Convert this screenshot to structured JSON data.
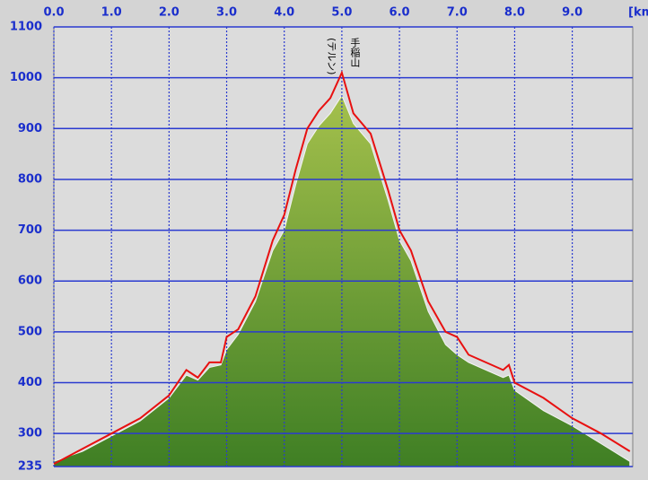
{
  "chart_data": {
    "type": "line",
    "x_label": "[km",
    "annotations": [
      "手稲山",
      "(テルン)"
    ],
    "annotation_x": 5.0,
    "x": [
      0,
      0.5,
      1,
      1.5,
      2,
      2.3,
      2.5,
      2.7,
      2.9,
      3,
      3.2,
      3.5,
      3.8,
      4,
      4.2,
      4.4,
      4.6,
      4.8,
      5,
      5.2,
      5.5,
      5.8,
      6,
      6.2,
      6.5,
      6.8,
      7,
      7.2,
      7.5,
      7.8,
      7.9,
      8,
      8.5,
      9,
      9.5,
      10
    ],
    "series": [
      {
        "color": "#6a9a34",
        "fill": true,
        "values": [
          245,
          265,
          295,
          325,
          370,
          415,
          405,
          430,
          435,
          465,
          495,
          560,
          660,
          700,
          790,
          870,
          905,
          930,
          965,
          910,
          870,
          760,
          680,
          640,
          540,
          475,
          455,
          440,
          425,
          410,
          415,
          385,
          345,
          315,
          280,
          245
        ]
      },
      {
        "color": "#e81010",
        "fill": false,
        "values": [
          240,
          270,
          300,
          330,
          375,
          425,
          410,
          440,
          440,
          490,
          505,
          570,
          680,
          730,
          820,
          900,
          935,
          960,
          1010,
          930,
          890,
          780,
          700,
          660,
          560,
          500,
          490,
          455,
          440,
          425,
          435,
          400,
          370,
          330,
          300,
          265
        ]
      }
    ],
    "xlim": [
      0,
      10.05
    ],
    "ylim": [
      235,
      1100
    ],
    "xticks": [
      {
        "value": 0,
        "label": "0.0"
      },
      {
        "value": 1,
        "label": "1.0"
      },
      {
        "value": 2,
        "label": "2.0"
      },
      {
        "value": 3,
        "label": "3.0"
      },
      {
        "value": 4,
        "label": "4.0"
      },
      {
        "value": 5,
        "label": "5.0"
      },
      {
        "value": 6,
        "label": "6.0"
      },
      {
        "value": 7,
        "label": "7.0"
      },
      {
        "value": 8,
        "label": "8.0"
      },
      {
        "value": 9,
        "label": "9.0"
      }
    ],
    "yticks": [
      235,
      300,
      400,
      500,
      600,
      700,
      800,
      900,
      1000,
      1100
    ],
    "grid": true
  }
}
